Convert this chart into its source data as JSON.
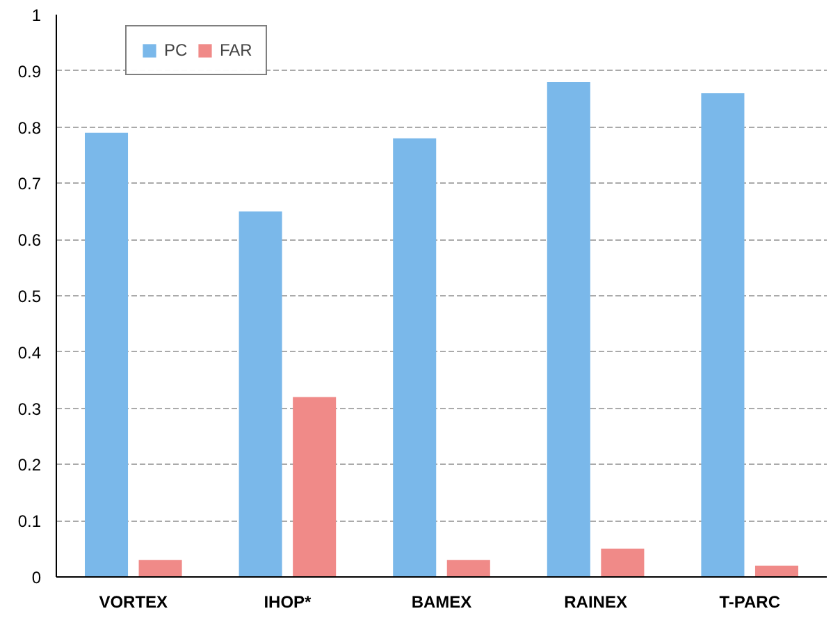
{
  "chart_data": {
    "type": "bar",
    "categories": [
      "VORTEX",
      "IHOP*",
      "BAMEX",
      "RAINEX",
      "T-PARC"
    ],
    "series": [
      {
        "name": "PC",
        "color": "#7ab8ea",
        "values": [
          0.79,
          0.65,
          0.78,
          0.88,
          0.86
        ]
      },
      {
        "name": "FAR",
        "color": "#f08a88",
        "values": [
          0.03,
          0.32,
          0.03,
          0.05,
          0.02
        ]
      }
    ],
    "ylim": [
      0,
      1
    ],
    "yticks": [
      0,
      0.1,
      0.2,
      0.3,
      0.4,
      0.5,
      0.6,
      0.7,
      0.8,
      0.9,
      1
    ],
    "grid": "y",
    "legend": "top left"
  }
}
